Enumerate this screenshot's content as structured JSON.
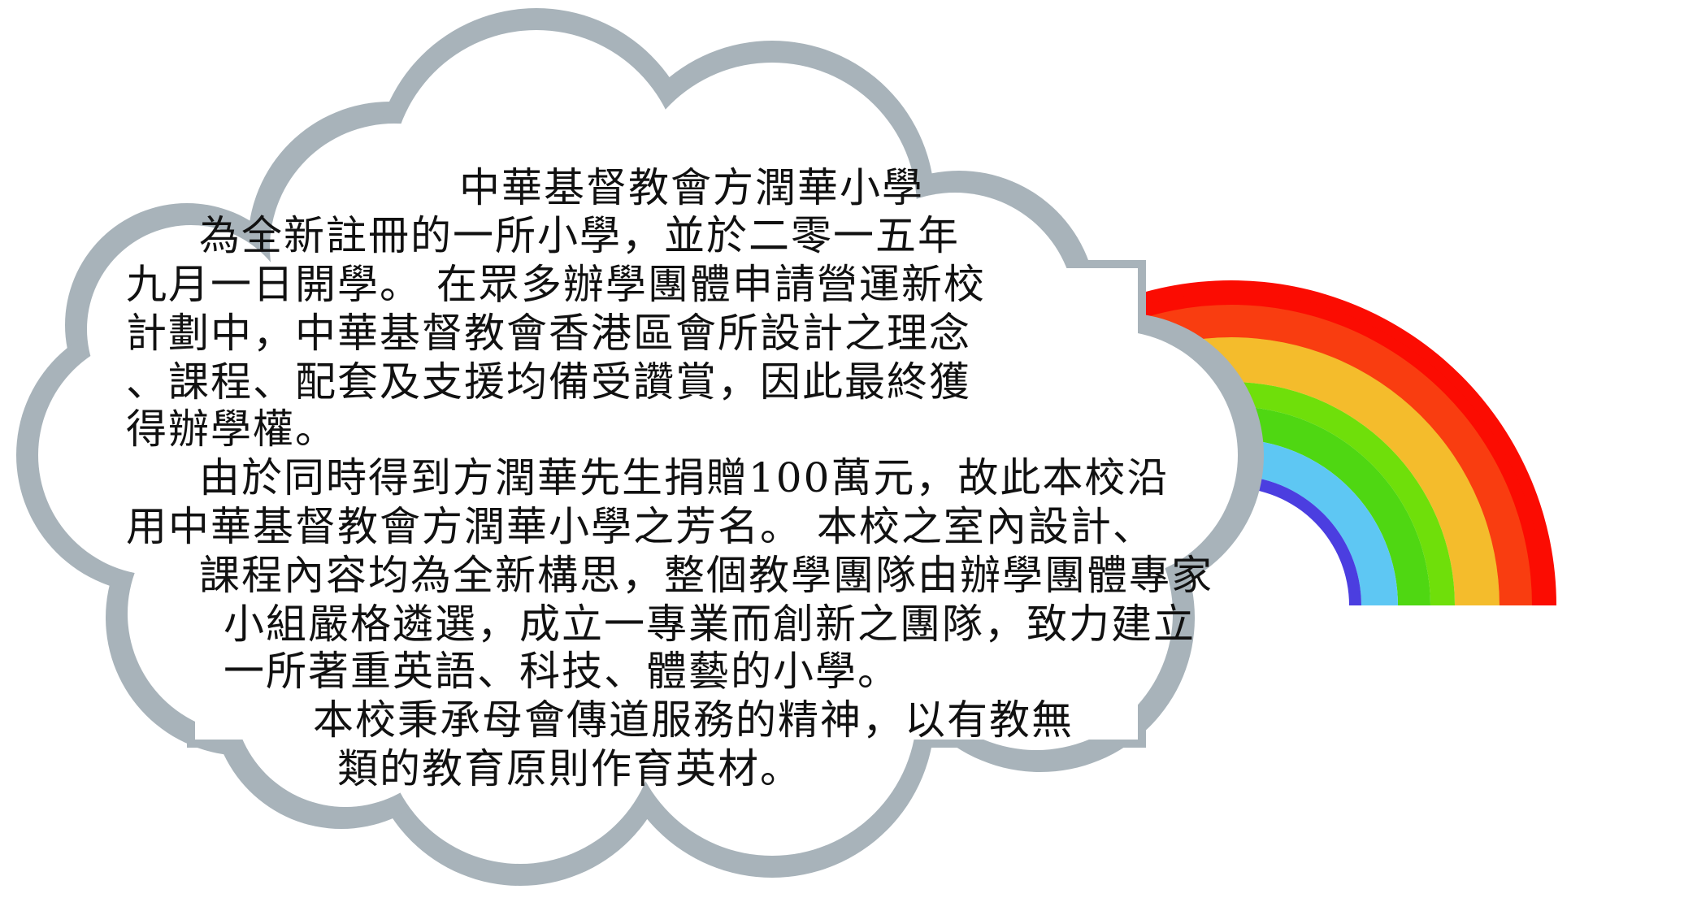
{
  "title": "中華基督教會方潤華小學",
  "paragraphs": [
    {
      "lines": [
        "為全新註冊的一所小學，並於二零一五年",
        "九月一日開學。 在眾多辦學團體申請營運新校",
        "計劃中，中華基督教會香港區會所設計之理念",
        "、課程、配套及支援均備受讚賞，因此最終獲",
        "得辦學權。"
      ]
    },
    {
      "lines": [
        "由於同時得到方潤華先生捐贈100萬元，故此本校沿",
        "用中華基督教會方潤華小學之芳名。 本校之室內設計、",
        "課程內容均為全新構思，整個教學團隊由辦學團體專家",
        "小組嚴格遴選，成立一專業而創新之團隊，致力建立",
        "一所著重英語、科技、體藝的小學。"
      ]
    },
    {
      "lines": [
        "本校秉承母會傳道服務的精神，以有教無",
        "類的教育原則作育英材。"
      ]
    }
  ],
  "colors": {
    "rainbow": [
      "#fb0c02",
      "#f93d10",
      "#f4bc2c",
      "#6fdf0a",
      "#4fd712",
      "#5ec7f3",
      "#4b3ee0"
    ],
    "cloud_border": "#a8b3ba",
    "cloud_fill": "#ffffff",
    "text": "#111111"
  }
}
